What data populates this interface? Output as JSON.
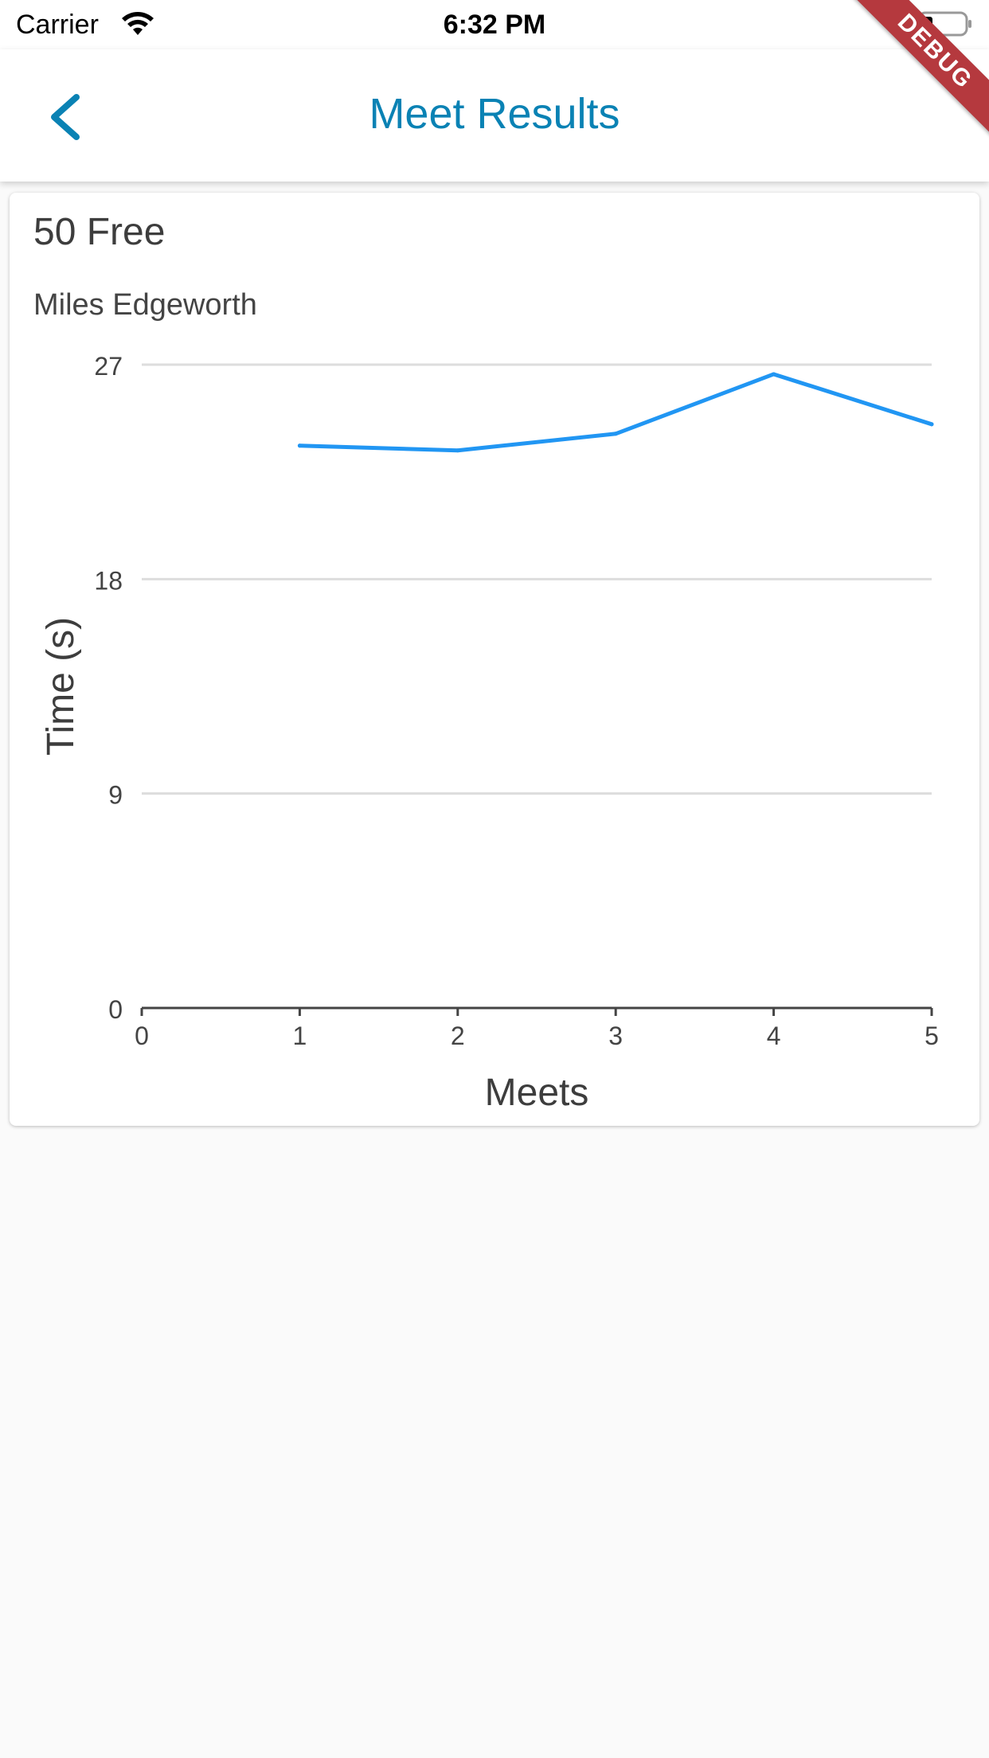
{
  "status_bar": {
    "carrier": "Carrier",
    "time": "6:32 PM"
  },
  "debug_label": "DEBUG",
  "app_bar": {
    "title": "Meet Results",
    "back_icon": "chevron-left-icon"
  },
  "colors": {
    "accent": "#0a82b4",
    "line": "#2196f3",
    "debug": "#b5393e"
  },
  "card": {
    "title": "50 Free",
    "subtitle": "Miles Edgeworth"
  },
  "chart_data": {
    "type": "line",
    "xlabel": "Meets",
    "ylabel": "Time (s)",
    "xlim": [
      0,
      5
    ],
    "ylim": [
      0,
      27
    ],
    "x_ticks": [
      0,
      1,
      2,
      3,
      4,
      5
    ],
    "y_ticks": [
      0,
      9,
      18,
      27
    ],
    "grid": true,
    "series": [
      {
        "x": [
          1,
          2,
          3,
          4,
          5
        ],
        "values": [
          23.6,
          23.4,
          24.1,
          26.6,
          24.5
        ]
      }
    ]
  }
}
